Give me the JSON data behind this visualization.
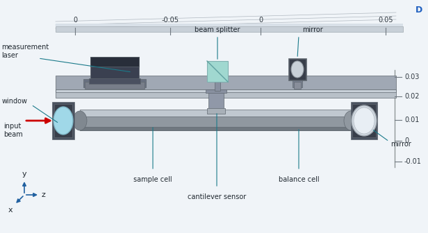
{
  "bg_color": "#f0f4f8",
  "labels": {
    "beam_splitter": "beam splitter",
    "mirror_top": "mirror",
    "measurement_laser": "measurement\nlaser",
    "window": "window",
    "input_beam": "input\nbeam",
    "sample_cell": "sample cell",
    "cantilever_sensor": "cantilever sensor",
    "balance_cell": "balance cell",
    "mirror_right": "mirror"
  },
  "top_labels": [
    [
      "0",
      108
    ],
    [
      "-0.05",
      245
    ],
    [
      "0",
      375
    ],
    [
      "0.05",
      555
    ]
  ],
  "right_labels": [
    [
      "0.03",
      225
    ],
    [
      "0.02",
      197
    ],
    [
      "0.01",
      163
    ],
    [
      "0",
      133
    ],
    [
      "-0.01",
      103
    ]
  ],
  "arrow_color": "#cc0000",
  "line_color": "#1a7a8a",
  "label_fontsize": 7,
  "axis_fontsize": 7,
  "comsol_color": "#2060c0"
}
